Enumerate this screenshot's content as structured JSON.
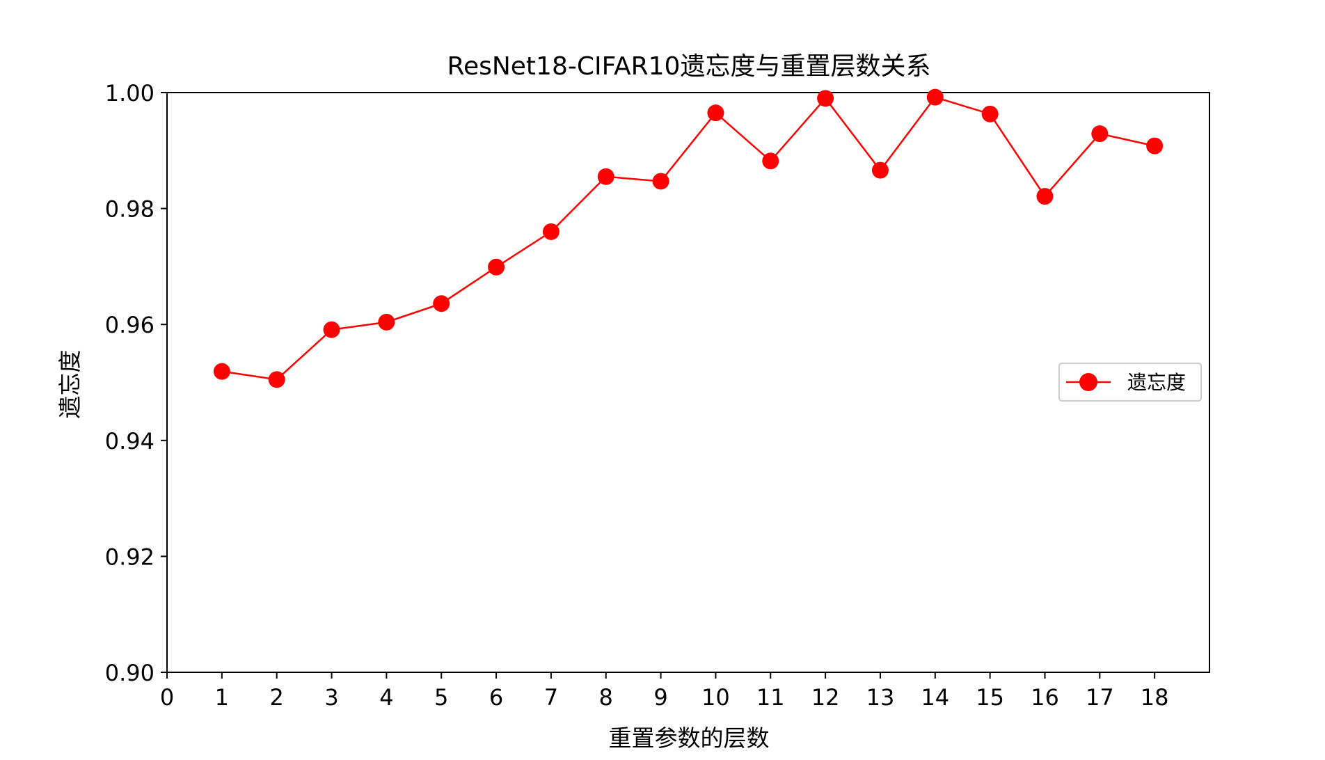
{
  "chart_data": {
    "type": "line",
    "title": "ResNet18-CIFAR10遗忘度与重置层数关系",
    "xlabel": "重置参数的层数",
    "ylabel": "遗忘度",
    "xlim": [
      0,
      19
    ],
    "ylim": [
      0.9,
      1.0
    ],
    "x_ticks": [
      "0",
      "1",
      "2",
      "3",
      "4",
      "5",
      "6",
      "7",
      "8",
      "9",
      "10",
      "11",
      "12",
      "13",
      "14",
      "15",
      "16",
      "17",
      "18"
    ],
    "y_ticks": [
      "0.90",
      "0.92",
      "0.94",
      "0.96",
      "0.98",
      "1.00"
    ],
    "legend_position": "center-right",
    "grid": false,
    "series": [
      {
        "name": "遗忘度",
        "color": "#ff0000",
        "marker": "circle",
        "x": [
          1,
          2,
          3,
          4,
          5,
          6,
          7,
          8,
          9,
          10,
          11,
          12,
          13,
          14,
          15,
          16,
          17,
          18
        ],
        "values": [
          0.9519,
          0.9505,
          0.9591,
          0.9604,
          0.9636,
          0.9699,
          0.976,
          0.9855,
          0.9847,
          0.9965,
          0.9882,
          0.999,
          0.9866,
          0.9992,
          0.9963,
          0.9821,
          0.9929,
          0.9908
        ]
      }
    ]
  }
}
